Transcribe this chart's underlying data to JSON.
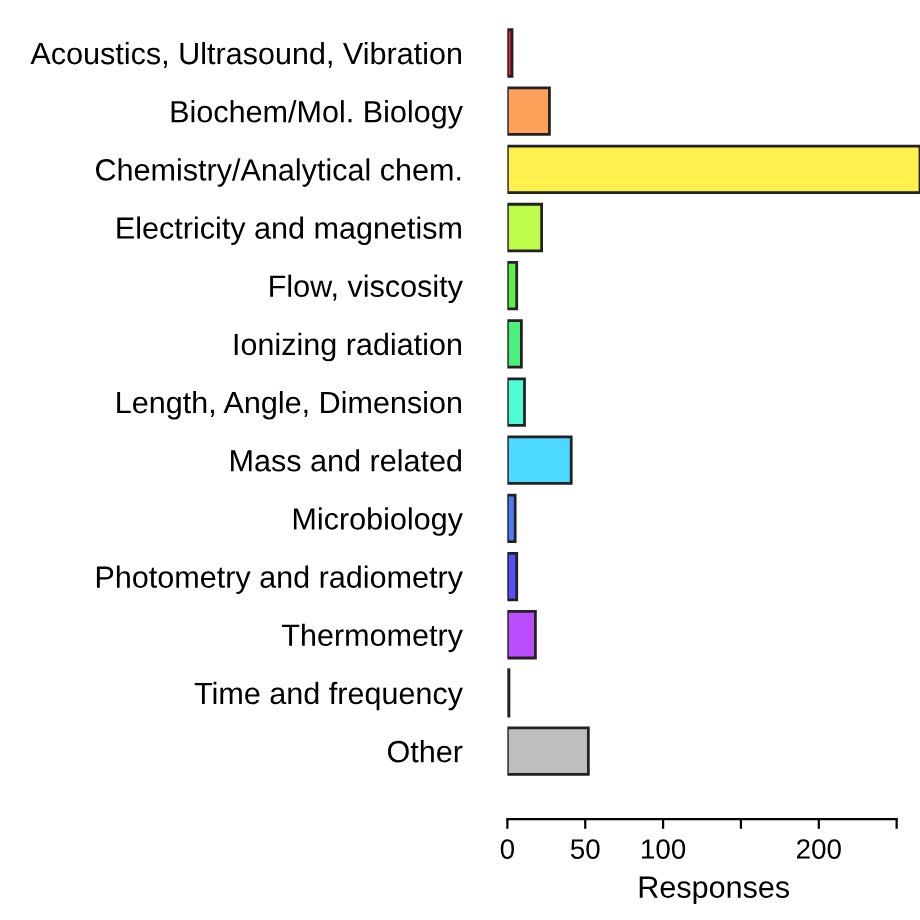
{
  "chart_data": {
    "type": "bar",
    "orientation": "horizontal",
    "xlabel": "Responses",
    "categories": [
      "Acoustics, Ultrasound, Vibration",
      "Biochem/Mol. Biology",
      "Chemistry/Analytical chem.",
      "Electricity and magnetism",
      "Flow, viscosity",
      "Ionizing radiation",
      "Length, Angle, Dimension",
      "Mass and related",
      "Microbiology",
      "Photometry and radiometry",
      "Thermometry",
      "Time and frequency",
      "Other"
    ],
    "values": [
      3,
      27,
      265,
      22,
      6,
      9,
      11,
      41,
      5,
      6,
      18,
      1,
      52
    ],
    "colors": [
      "#e8213f",
      "#ffa05a",
      "#fff04d",
      "#bffc4a",
      "#5cf04a",
      "#4cf07c",
      "#4dfcd0",
      "#4dd8ff",
      "#4d7cff",
      "#5a4dff",
      "#bb4dff",
      "#ff4dd0",
      "#bebebe"
    ],
    "xlim": [
      0,
      265
    ],
    "xticks": [
      0,
      50,
      100,
      {
        "value": 150,
        "label": null
      },
      200,
      {
        "value": 250,
        "label": null
      }
    ],
    "grid": false,
    "legend": false
  }
}
